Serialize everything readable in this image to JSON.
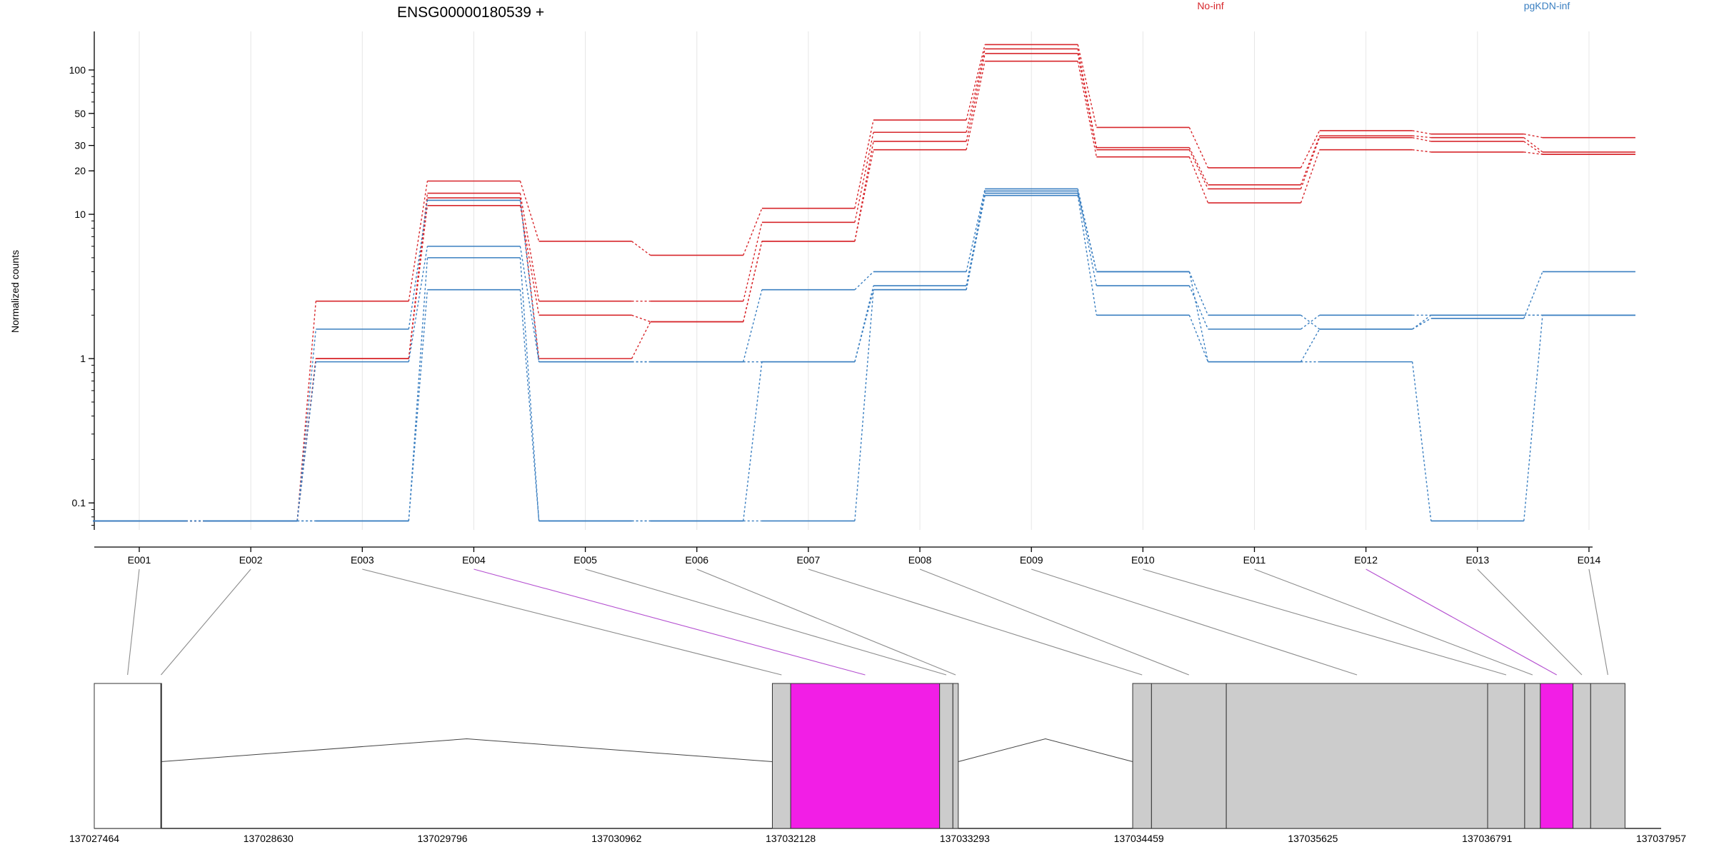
{
  "colors": {
    "no_inf": "#d7262b",
    "pgkdn_inf": "#3a7fc1",
    "exon_gray": "#cccccc",
    "exon_magenta": "#f21ee6",
    "connector_gray": "#8c8c8c",
    "connector_magenta": "#b44fd0",
    "axis": "#000000",
    "grid": "#e6e6e6"
  },
  "chart_data": {
    "type": "line",
    "title": "ENSG00000180539 +",
    "ylabel": "Normalized counts",
    "y_scale": "log",
    "ylim": [
      0.065,
      185
    ],
    "y_ticks": [
      0.1,
      1,
      10,
      20,
      30,
      50,
      100
    ],
    "y_tick_labels": [
      "0.1",
      "1",
      "10",
      "20",
      "30",
      "50",
      "100"
    ],
    "categories": [
      "E001",
      "E002",
      "E003",
      "E004",
      "E005",
      "E006",
      "E007",
      "E008",
      "E009",
      "E010",
      "E011",
      "E012",
      "E013",
      "E014"
    ],
    "legend": [
      {
        "name": "No-inf",
        "color": "#d7262b"
      },
      {
        "name": "pgKDN-inf",
        "color": "#3a7fc1"
      }
    ],
    "zero_floor": 0.075,
    "series": [
      {
        "group": "No-inf",
        "values": [
          0.075,
          0.075,
          2.5,
          17,
          6.5,
          5.2,
          11,
          45,
          150,
          40,
          21,
          38,
          36,
          34
        ]
      },
      {
        "group": "No-inf",
        "values": [
          0.075,
          0.075,
          1.0,
          14,
          2.5,
          2.5,
          8.8,
          37,
          140,
          29,
          16,
          35,
          34,
          27
        ]
      },
      {
        "group": "No-inf",
        "values": [
          0.075,
          0.075,
          1.0,
          13,
          1.0,
          1.8,
          6.5,
          32,
          130,
          28,
          15,
          34,
          32,
          26
        ]
      },
      {
        "group": "No-inf",
        "values": [
          0.075,
          0.075,
          1.0,
          11.5,
          2.0,
          1.8,
          6.5,
          28,
          115,
          25,
          12,
          28,
          27,
          26
        ]
      },
      {
        "group": "pgKDN-inf",
        "values": [
          0.075,
          0.075,
          1.6,
          12.5,
          0.95,
          0.95,
          3.0,
          4.0,
          15,
          4.0,
          2.0,
          1.6,
          1.9,
          4.0
        ]
      },
      {
        "group": "pgKDN-inf",
        "values": [
          0.075,
          0.075,
          0.95,
          6.0,
          0.95,
          0.95,
          0.95,
          3.2,
          14.5,
          3.2,
          1.6,
          2.0,
          2.0,
          2.0
        ]
      },
      {
        "group": "pgKDN-inf",
        "values": [
          0.075,
          0.075,
          0.075,
          5.0,
          0.075,
          0.075,
          0.95,
          3.0,
          14,
          4.0,
          0.95,
          0.95,
          0.075,
          2.0
        ]
      },
      {
        "group": "pgKDN-inf",
        "values": [
          0.075,
          0.075,
          0.075,
          3.0,
          0.075,
          0.075,
          0.075,
          3.0,
          13.5,
          2.0,
          0.95,
          1.6,
          2.0,
          2.0
        ]
      }
    ],
    "gene_model": {
      "coordinate_labels": [
        "137027464",
        "137028630",
        "137029796",
        "137030962",
        "137032128",
        "137033293",
        "137034459",
        "137035625",
        "137036791",
        "137037957"
      ],
      "range": [
        137027464,
        137037957
      ],
      "exons": [
        {
          "id": "E001",
          "start": 137027464,
          "end": 137027910,
          "highlight": false,
          "fill": "white"
        },
        {
          "id": "E002",
          "start": 137027910,
          "end": 137027912,
          "highlight": false,
          "fill": "white"
        },
        {
          "id": "E003",
          "start": 137032005,
          "end": 137032128,
          "highlight": false,
          "fill": "gray"
        },
        {
          "id": "E004",
          "start": 137032128,
          "end": 137033125,
          "highlight": true,
          "fill": "magenta"
        },
        {
          "id": "E005",
          "start": 137033125,
          "end": 137033214,
          "highlight": false,
          "fill": "gray"
        },
        {
          "id": "E006",
          "start": 137033214,
          "end": 137033250,
          "highlight": false,
          "fill": "gray"
        },
        {
          "id": "E007",
          "start": 137034418,
          "end": 137034544,
          "highlight": false,
          "fill": "gray"
        },
        {
          "id": "E008",
          "start": 137034544,
          "end": 137035045,
          "highlight": false,
          "fill": "gray"
        },
        {
          "id": "E009",
          "start": 137035045,
          "end": 137036795,
          "highlight": false,
          "fill": "gray"
        },
        {
          "id": "E010",
          "start": 137036795,
          "end": 137037043,
          "highlight": false,
          "fill": "gray"
        },
        {
          "id": "E011",
          "start": 137037043,
          "end": 137037148,
          "highlight": false,
          "fill": "gray"
        },
        {
          "id": "E012",
          "start": 137037148,
          "end": 137037367,
          "highlight": true,
          "fill": "magenta"
        },
        {
          "id": "E013",
          "start": 137037367,
          "end": 137037485,
          "highlight": false,
          "fill": "gray"
        },
        {
          "id": "E014",
          "start": 137037485,
          "end": 137037715,
          "highlight": false,
          "fill": "gray"
        }
      ],
      "introns": [
        {
          "start": 137027912,
          "end": 137032005
        },
        {
          "start": 137033250,
          "end": 137034418
        }
      ]
    }
  }
}
